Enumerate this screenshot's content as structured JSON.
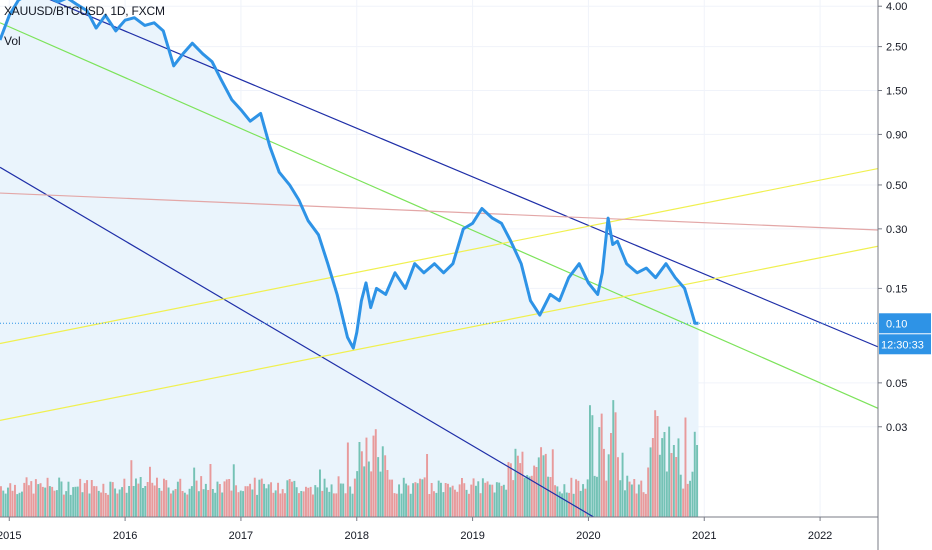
{
  "legend": {
    "symbol_line": "XAUUSD/BTCUSD, 1D, FXCM",
    "volume_label": "Vol"
  },
  "chart_data": {
    "type": "line",
    "title": "",
    "xlabel": "",
    "ylabel": "",
    "y_scale": "log",
    "grid": true,
    "xlim": [
      2014.92,
      2022.5
    ],
    "ylim": [
      0.0105,
      4.3
    ],
    "y_ticks": [
      "4.00",
      "2.50",
      "1.50",
      "0.90",
      "0.50",
      "0.30",
      "0.15",
      "0.05",
      "0.03"
    ],
    "y_tick_values": [
      4.0,
      2.5,
      1.5,
      0.9,
      0.5,
      0.3,
      0.15,
      0.05,
      0.03
    ],
    "x_ticks": [
      "2015",
      "2016",
      "2017",
      "2018",
      "2019",
      "2020",
      "2021",
      "2022"
    ],
    "x_tick_values": [
      2015,
      2016,
      2017,
      2018,
      2019,
      2020,
      2021,
      2022
    ],
    "last_price_label": "0.10",
    "last_price_value": 0.1,
    "countdown_label": "12:30:33",
    "colors": {
      "price": "#2e93e6",
      "area_fill": "#eaf4fc",
      "channel": "#1f2fa8",
      "midline": "#7ce35a",
      "support": "#f0f050",
      "resistance": "#e3a7a7",
      "vol_up": "#5fb8a8",
      "vol_down": "#e88a8a",
      "badge": "#2e93e6"
    },
    "series": [
      {
        "points": [
          [
            2014.92,
            2.7
          ],
          [
            2015.0,
            3.6
          ],
          [
            2015.08,
            4.3
          ],
          [
            2015.17,
            4.6
          ],
          [
            2015.25,
            4.4
          ],
          [
            2015.33,
            4.5
          ],
          [
            2015.42,
            4.2
          ],
          [
            2015.5,
            4.4
          ],
          [
            2015.58,
            4.1
          ],
          [
            2015.67,
            3.8
          ],
          [
            2015.75,
            3.1
          ],
          [
            2015.83,
            3.6
          ],
          [
            2015.92,
            3.0
          ],
          [
            2016.0,
            3.4
          ],
          [
            2016.08,
            3.5
          ],
          [
            2016.17,
            3.2
          ],
          [
            2016.25,
            3.3
          ],
          [
            2016.33,
            3.0
          ],
          [
            2016.42,
            2.0
          ],
          [
            2016.5,
            2.3
          ],
          [
            2016.58,
            2.6
          ],
          [
            2016.67,
            2.3
          ],
          [
            2016.75,
            2.1
          ],
          [
            2016.83,
            1.7
          ],
          [
            2016.92,
            1.35
          ],
          [
            2017.0,
            1.2
          ],
          [
            2017.08,
            1.05
          ],
          [
            2017.17,
            1.15
          ],
          [
            2017.25,
            0.78
          ],
          [
            2017.33,
            0.58
          ],
          [
            2017.42,
            0.5
          ],
          [
            2017.5,
            0.42
          ],
          [
            2017.58,
            0.33
          ],
          [
            2017.67,
            0.28
          ],
          [
            2017.75,
            0.2
          ],
          [
            2017.83,
            0.14
          ],
          [
            2017.92,
            0.085
          ],
          [
            2017.97,
            0.075
          ],
          [
            2018.0,
            0.09
          ],
          [
            2018.04,
            0.13
          ],
          [
            2018.08,
            0.16
          ],
          [
            2018.12,
            0.12
          ],
          [
            2018.17,
            0.15
          ],
          [
            2018.25,
            0.14
          ],
          [
            2018.33,
            0.18
          ],
          [
            2018.42,
            0.15
          ],
          [
            2018.5,
            0.2
          ],
          [
            2018.58,
            0.18
          ],
          [
            2018.67,
            0.2
          ],
          [
            2018.75,
            0.18
          ],
          [
            2018.83,
            0.2
          ],
          [
            2018.92,
            0.3
          ],
          [
            2019.0,
            0.32
          ],
          [
            2019.08,
            0.38
          ],
          [
            2019.17,
            0.34
          ],
          [
            2019.25,
            0.32
          ],
          [
            2019.33,
            0.26
          ],
          [
            2019.42,
            0.2
          ],
          [
            2019.5,
            0.13
          ],
          [
            2019.58,
            0.11
          ],
          [
            2019.67,
            0.14
          ],
          [
            2019.75,
            0.13
          ],
          [
            2019.83,
            0.17
          ],
          [
            2019.92,
            0.2
          ],
          [
            2020.0,
            0.16
          ],
          [
            2020.08,
            0.14
          ],
          [
            2020.12,
            0.18
          ],
          [
            2020.17,
            0.34
          ],
          [
            2020.21,
            0.25
          ],
          [
            2020.25,
            0.26
          ],
          [
            2020.33,
            0.2
          ],
          [
            2020.42,
            0.18
          ],
          [
            2020.5,
            0.19
          ],
          [
            2020.58,
            0.17
          ],
          [
            2020.67,
            0.2
          ],
          [
            2020.75,
            0.17
          ],
          [
            2020.83,
            0.15
          ],
          [
            2020.88,
            0.12
          ],
          [
            2020.92,
            0.1
          ],
          [
            2020.95,
            0.1
          ]
        ]
      }
    ],
    "trend_lines": [
      {
        "role": "channel-upper",
        "from": [
          2015.0,
          5.27
        ],
        "to": [
          2022.5,
          0.076
        ]
      },
      {
        "role": "channel-lower",
        "from": [
          2014.92,
          0.614
        ],
        "to": [
          2020.16,
          0.00958
        ]
      },
      {
        "role": "midline",
        "from": [
          2014.92,
          3.3
        ],
        "to": [
          2022.5,
          0.0372
        ]
      },
      {
        "role": "support-upper",
        "from": [
          2014.92,
          0.079
        ],
        "to": [
          2022.5,
          0.605
        ]
      },
      {
        "role": "support-lower",
        "from": [
          2014.92,
          0.0323
        ],
        "to": [
          2022.5,
          0.245
        ]
      },
      {
        "role": "resistance",
        "from": [
          2014.92,
          0.455
        ],
        "to": [
          2022.5,
          0.296
        ]
      }
    ],
    "volume_bars": {
      "count": 300,
      "pattern": "mostly low 2015-2019, spikes during 2018 and 2019-2020"
    }
  }
}
